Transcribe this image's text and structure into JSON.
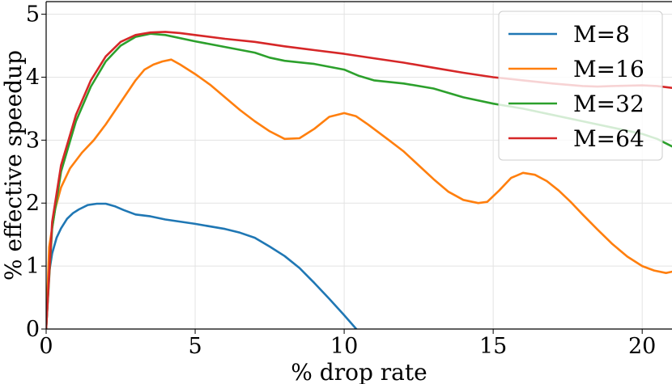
{
  "chart_data": {
    "type": "line",
    "title": "",
    "xlabel": "% drop rate",
    "ylabel": "% effective speedup",
    "xlim": [
      0,
      21
    ],
    "ylim": [
      0,
      5.2
    ],
    "xticks": [
      0,
      5,
      10,
      15,
      20
    ],
    "yticks": [
      0,
      1,
      2,
      3,
      4,
      5
    ],
    "grid": true,
    "legend_position": "top-right",
    "series": [
      {
        "name": "M=8",
        "color": "#1f77b4",
        "x": [
          0,
          0.1,
          0.2,
          0.35,
          0.5,
          0.7,
          0.9,
          1.1,
          1.4,
          1.7,
          2.0,
          2.3,
          2.6,
          3.0,
          3.5,
          4.0,
          5.0,
          6.0,
          6.5,
          7.0,
          7.5,
          8.0,
          8.5,
          9.0,
          9.5,
          10.0,
          10.5
        ],
        "y": [
          0,
          0.9,
          1.2,
          1.45,
          1.6,
          1.75,
          1.84,
          1.9,
          1.97,
          1.99,
          1.99,
          1.95,
          1.89,
          1.82,
          1.79,
          1.74,
          1.67,
          1.59,
          1.53,
          1.45,
          1.31,
          1.16,
          0.97,
          0.73,
          0.48,
          0.22,
          -0.05
        ]
      },
      {
        "name": "M=16",
        "color": "#ff7f0e",
        "x": [
          0,
          0.1,
          0.3,
          0.5,
          0.8,
          1.2,
          1.6,
          2.0,
          2.5,
          3.0,
          3.3,
          3.6,
          3.9,
          4.2,
          4.5,
          5.0,
          5.5,
          6.0,
          6.5,
          7.0,
          7.5,
          8.0,
          8.5,
          9.0,
          9.5,
          10.0,
          10.4,
          10.8,
          11.5,
          12.0,
          12.5,
          13.0,
          13.5,
          14.0,
          14.5,
          14.8,
          15.2,
          15.6,
          16.0,
          16.4,
          16.8,
          17.2,
          17.6,
          18.0,
          18.5,
          19.0,
          19.5,
          20.0,
          20.4,
          20.8,
          21.0
        ],
        "y": [
          0,
          1.3,
          1.9,
          2.25,
          2.55,
          2.8,
          3.0,
          3.25,
          3.6,
          3.95,
          4.12,
          4.2,
          4.25,
          4.28,
          4.2,
          4.05,
          3.88,
          3.68,
          3.48,
          3.3,
          3.14,
          3.02,
          3.03,
          3.18,
          3.37,
          3.43,
          3.38,
          3.25,
          3.0,
          2.82,
          2.6,
          2.38,
          2.18,
          2.05,
          2.0,
          2.02,
          2.2,
          2.4,
          2.48,
          2.45,
          2.35,
          2.2,
          2.02,
          1.82,
          1.58,
          1.35,
          1.15,
          1.0,
          0.93,
          0.89,
          0.91
        ]
      },
      {
        "name": "M=32",
        "color": "#2ca02c",
        "x": [
          0,
          0.2,
          0.5,
          1.0,
          1.5,
          2.0,
          2.5,
          3.0,
          3.5,
          4.0,
          5.0,
          6.0,
          7.0,
          7.5,
          8.0,
          9.0,
          10.0,
          10.5,
          11.0,
          12.0,
          13.0,
          14.0,
          15.0,
          16.0,
          17.0,
          18.0,
          19.0,
          20.0,
          20.5,
          21.0
        ],
        "y": [
          0,
          1.6,
          2.5,
          3.3,
          3.85,
          4.25,
          4.5,
          4.64,
          4.69,
          4.67,
          4.57,
          4.48,
          4.39,
          4.31,
          4.26,
          4.21,
          4.12,
          4.02,
          3.95,
          3.9,
          3.82,
          3.68,
          3.58,
          3.5,
          3.4,
          3.3,
          3.2,
          3.1,
          3.02,
          2.9
        ]
      },
      {
        "name": "M=64",
        "color": "#d62728",
        "x": [
          0,
          0.2,
          0.5,
          1.0,
          1.5,
          2.0,
          2.5,
          3.0,
          3.5,
          4.0,
          4.5,
          5.0,
          6.0,
          7.0,
          8.0,
          9.0,
          10.0,
          11.0,
          12.0,
          13.0,
          14.0,
          15.0,
          16.0,
          17.0,
          18.0,
          18.5,
          19.0,
          20.0,
          20.5,
          21.0
        ],
        "y": [
          0,
          1.7,
          2.6,
          3.4,
          3.95,
          4.33,
          4.56,
          4.67,
          4.71,
          4.72,
          4.7,
          4.67,
          4.61,
          4.56,
          4.49,
          4.43,
          4.37,
          4.3,
          4.23,
          4.15,
          4.07,
          4.0,
          3.95,
          3.9,
          3.86,
          3.85,
          3.86,
          3.87,
          3.86,
          3.83
        ]
      }
    ]
  }
}
